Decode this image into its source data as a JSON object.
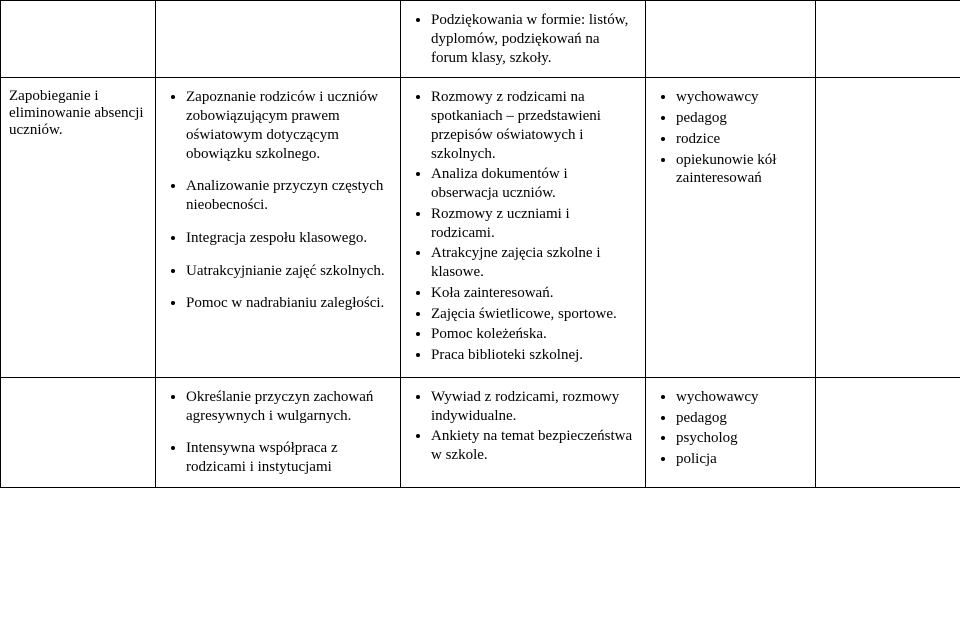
{
  "row1": {
    "colC": [
      "Podziękowania w formie: listów, dyplomów, podziękowań na forum klasy, szkoły."
    ]
  },
  "row2": {
    "label": "Zapobieganie i eliminowanie absencji uczniów.",
    "colB": [
      "Zapoznanie rodziców i uczniów zobowiązującym prawem oświatowym dotyczącym obowiązku szkolnego.",
      "Analizowanie przyczyn częstych nieobecności.",
      "Integracja  zespołu klasowego.",
      "Uatrakcyjnianie zajęć szkolnych.",
      "Pomoc w nadrabianiu zaległości."
    ],
    "colC": [
      "Rozmowy z rodzicami na spotkaniach – przedstawieni przepisów oświatowych i szkolnych.",
      "Analiza dokumentów i obserwacja uczniów.",
      "Rozmowy z uczniami i rodzicami.",
      "Atrakcyjne zajęcia szkolne i klasowe.",
      "Koła zainteresowań.",
      "Zajęcia świetlicowe, sportowe.",
      "Pomoc koleżeńska.",
      "Praca biblioteki szkolnej."
    ],
    "colD": [
      "wychowawcy",
      "pedagog",
      "rodzice",
      "opiekunowie kół zainteresowań"
    ]
  },
  "row3": {
    "colB": [
      "Określanie przyczyn zachowań agresywnych i wulgarnych.",
      "Intensywna współpraca z rodzicami i instytucjami"
    ],
    "colC": [
      "Wywiad z rodzicami, rozmowy indywidualne.",
      "Ankiety na temat bezpieczeństwa w szkole."
    ],
    "colD": [
      "wychowawcy",
      "pedagog",
      "psycholog",
      "policja"
    ]
  }
}
